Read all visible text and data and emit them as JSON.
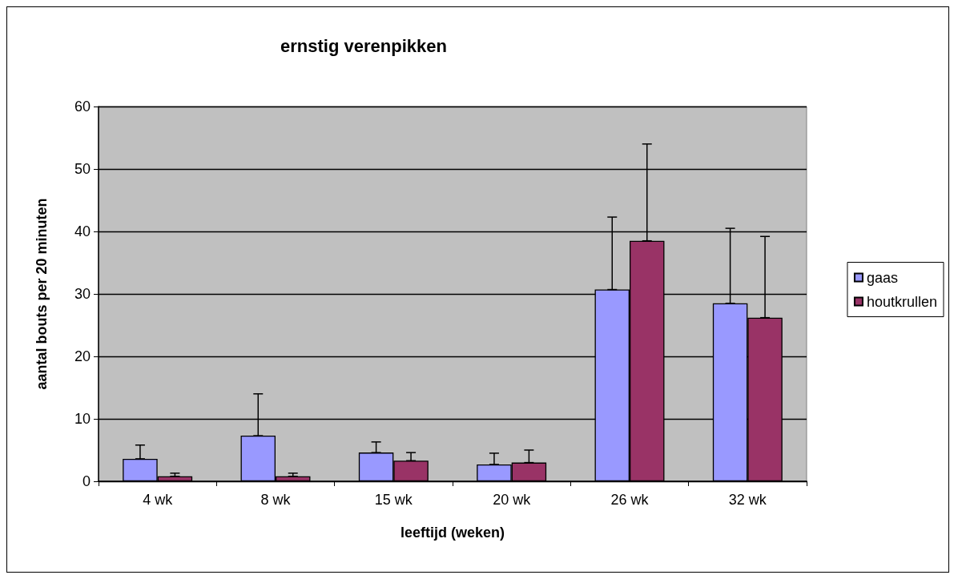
{
  "chart_data": {
    "type": "bar",
    "title": "ernstig verenpikken",
    "xlabel": "leeftijd (weken)",
    "ylabel": "aantal bouts per 20 minuten",
    "categories": [
      "4 wk",
      "8 wk",
      "15 wk",
      "20 wk",
      "26 wk",
      "32 wk"
    ],
    "series": [
      {
        "name": "gaas",
        "color": "#9999ff",
        "values": [
          3.6,
          7.3,
          4.6,
          2.7,
          30.7,
          28.5
        ],
        "errors": [
          [
            3.6,
            5.8
          ],
          [
            7.3,
            14.0
          ],
          [
            4.6,
            6.3
          ],
          [
            2.7,
            4.5
          ],
          [
            30.7,
            42.3
          ],
          [
            28.5,
            40.5
          ]
        ]
      },
      {
        "name": "houtkrullen",
        "color": "#993366",
        "values": [
          0.8,
          0.8,
          3.3,
          3.0,
          38.5,
          26.2
        ],
        "errors": [
          [
            0.8,
            1.3
          ],
          [
            0.8,
            1.3
          ],
          [
            3.3,
            4.6
          ],
          [
            3.0,
            5.0
          ],
          [
            38.5,
            54.0
          ],
          [
            26.2,
            39.2
          ]
        ]
      }
    ],
    "ylim": [
      0,
      60
    ],
    "yticks": [
      0,
      10,
      20,
      30,
      40,
      50,
      60
    ],
    "grid": "y",
    "legend": "right"
  }
}
